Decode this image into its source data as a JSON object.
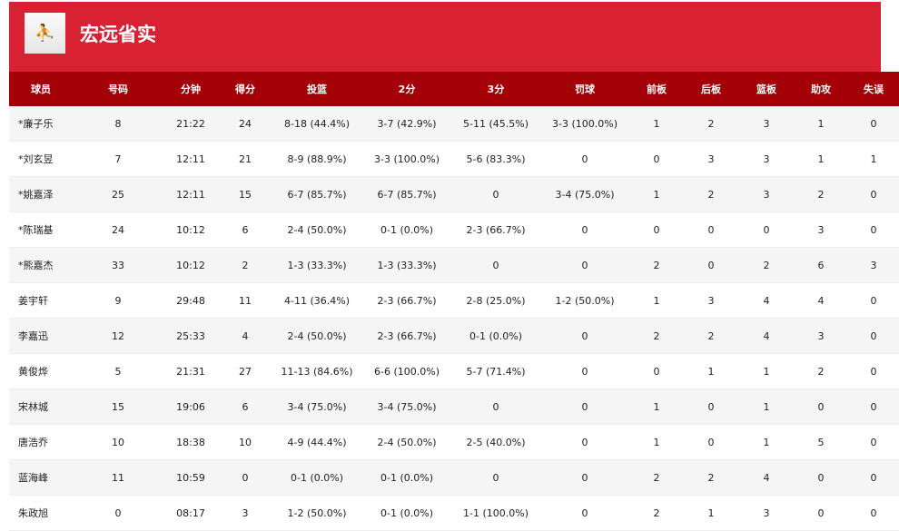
{
  "team": {
    "name": "宏远省实",
    "logo_icon": "team-logo-icon"
  },
  "columns": [
    "球员",
    "号码",
    "分钟",
    "得分",
    "投篮",
    "2分",
    "3分",
    "罚球",
    "前板",
    "后板",
    "篮板",
    "助攻",
    "失误"
  ],
  "rows": [
    [
      "*廉子乐",
      "8",
      "21:22",
      "24",
      "8-18 (44.4%)",
      "3-7 (42.9%)",
      "5-11 (45.5%)",
      "3-3 (100.0%)",
      "1",
      "2",
      "3",
      "1",
      "0"
    ],
    [
      "*刘玄昱",
      "7",
      "12:11",
      "21",
      "8-9 (88.9%)",
      "3-3 (100.0%)",
      "5-6 (83.3%)",
      "0",
      "0",
      "3",
      "3",
      "1",
      "1"
    ],
    [
      "*姚嘉泽",
      "25",
      "12:11",
      "15",
      "6-7 (85.7%)",
      "6-7 (85.7%)",
      "0",
      "3-4 (75.0%)",
      "1",
      "2",
      "3",
      "2",
      "0"
    ],
    [
      "*陈瑞基",
      "24",
      "10:12",
      "6",
      "2-4 (50.0%)",
      "0-1 (0.0%)",
      "2-3 (66.7%)",
      "0",
      "0",
      "0",
      "0",
      "3",
      "0"
    ],
    [
      "*熊嘉杰",
      "33",
      "10:12",
      "2",
      "1-3 (33.3%)",
      "1-3 (33.3%)",
      "0",
      "0",
      "2",
      "0",
      "2",
      "6",
      "3"
    ],
    [
      "姜宇轩",
      "9",
      "29:48",
      "11",
      "4-11 (36.4%)",
      "2-3 (66.7%)",
      "2-8 (25.0%)",
      "1-2 (50.0%)",
      "1",
      "3",
      "4",
      "4",
      "0"
    ],
    [
      "李嘉迅",
      "12",
      "25:33",
      "4",
      "2-4 (50.0%)",
      "2-3 (66.7%)",
      "0-1 (0.0%)",
      "0",
      "2",
      "2",
      "4",
      "3",
      "0"
    ],
    [
      "黄俊烨",
      "5",
      "21:31",
      "27",
      "11-13 (84.6%)",
      "6-6 (100.0%)",
      "5-7 (71.4%)",
      "0",
      "0",
      "1",
      "1",
      "2",
      "0"
    ],
    [
      "宋林城",
      "15",
      "19:06",
      "6",
      "3-4 (75.0%)",
      "3-4 (75.0%)",
      "0",
      "0",
      "1",
      "0",
      "1",
      "0",
      "0"
    ],
    [
      "唐浩乔",
      "10",
      "18:38",
      "10",
      "4-9 (44.4%)",
      "2-4 (50.0%)",
      "2-5 (40.0%)",
      "0",
      "1",
      "0",
      "1",
      "5",
      "0"
    ],
    [
      "蓝海峰",
      "11",
      "10:59",
      "0",
      "0-1 (0.0%)",
      "0-1 (0.0%)",
      "0",
      "0",
      "2",
      "2",
      "4",
      "0",
      "0"
    ],
    [
      "朱政旭",
      "0",
      "08:17",
      "3",
      "1-2 (50.0%)",
      "0-1 (0.0%)",
      "1-1 (100.0%)",
      "0",
      "2",
      "1",
      "3",
      "0",
      "0"
    ]
  ],
  "colors": {
    "banner": "#d82234",
    "header": "#a30008"
  }
}
